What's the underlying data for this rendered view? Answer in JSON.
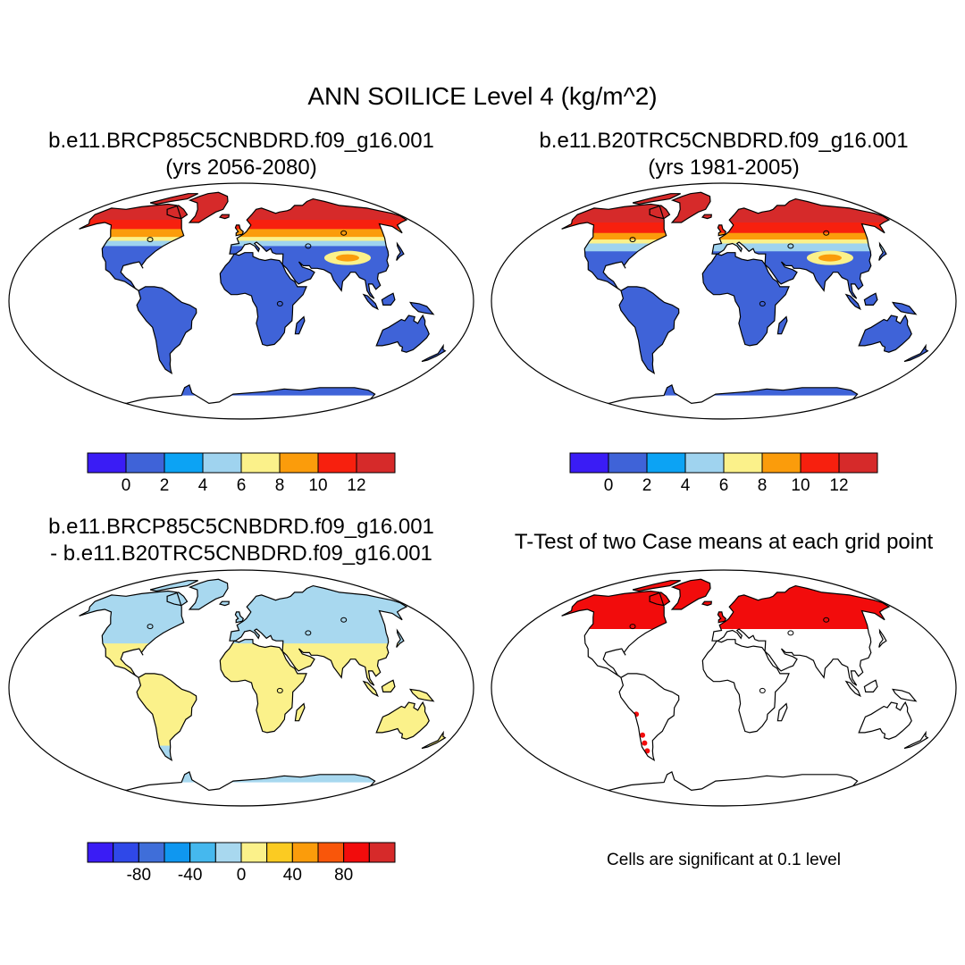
{
  "title": "ANN SOILICE Level 4 (kg/m^2)",
  "panels": [
    {
      "id": "case1",
      "title_line1": "b.e11.BRCP85C5CNBDRD.f09_g16.001",
      "title_line2": "(yrs 2056-2080)"
    },
    {
      "id": "case2",
      "title_line1": "b.e11.B20TRC5CNBDRD.f09_g16.001",
      "title_line2": "(yrs 1981-2005)"
    },
    {
      "id": "difference",
      "title_line1": "b.e11.BRCP85C5CNBDRD.f09_g16.001",
      "title_line2": "- b.e11.B20TRC5CNBDRD.f09_g16.001"
    },
    {
      "id": "ttest",
      "title_line1": "T-Test of two Case means at each grid point",
      "note": "Cells are significant at 0.1 level"
    }
  ],
  "colorbars": {
    "field": {
      "colors": [
        "#3a1cf5",
        "#3f63d8",
        "#0ca3f4",
        "#9fd3ef",
        "#fbf18a",
        "#fb9c0b",
        "#f7200e",
        "#d62a2a"
      ],
      "tick_labels": [
        "0",
        "2",
        "4",
        "6",
        "8",
        "10",
        "12"
      ]
    },
    "diff": {
      "colors": [
        "#3a1cf5",
        "#2f48e8",
        "#3f6ed9",
        "#0f97f0",
        "#45b8ee",
        "#a8d8ef",
        "#fbf18a",
        "#fbcb22",
        "#fb9c0b",
        "#f9560a",
        "#f20c0c",
        "#d62a2a"
      ],
      "tick_labels": [
        "-80",
        "-40",
        "0",
        "40",
        "80"
      ]
    }
  },
  "map_colors": {
    "ocean": "#ffffff",
    "land_base_field": "#3f63d8",
    "land_tropics_diff": "#fbf18a",
    "land_north_diff": "#a8d8ef",
    "significant": "#f20c0c"
  }
}
